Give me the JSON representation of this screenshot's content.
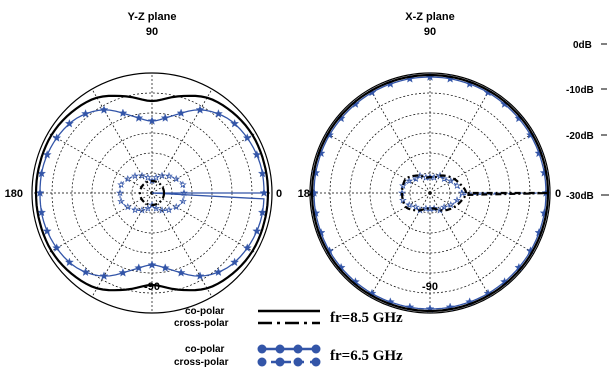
{
  "chart_data": {
    "type": "polar",
    "scale": {
      "unit": "dB",
      "min": -30,
      "max": 0,
      "step": 10,
      "tick_labels": [
        "0dB",
        "-10dB",
        "-20dB",
        "-30dB"
      ]
    },
    "angle_labels": [
      "90",
      "0",
      "-90",
      "180"
    ],
    "grid": true,
    "colors": {
      "fr_8_5": "#000000",
      "fr_6_5": "#3355a8"
    },
    "legend": [
      {
        "label": "co-polar",
        "group": "fr=8.5 GHz",
        "style": "solid"
      },
      {
        "label": "cross-polar",
        "group": "fr=8.5 GHz",
        "style": "dash-dot"
      },
      {
        "label": "co-polar",
        "group": "fr=6.5 GHz",
        "style": "solid-marker"
      },
      {
        "label": "cross-polar",
        "group": "fr=6.5 GHz",
        "style": "dashed-marker"
      }
    ],
    "legend_groups": [
      "fr=8.5 GHz",
      "fr=6.5 GHz"
    ],
    "angles_deg": [
      0,
      15,
      30,
      45,
      60,
      75,
      90,
      105,
      120,
      135,
      150,
      165,
      180,
      195,
      210,
      225,
      240,
      255,
      270,
      285,
      300,
      315,
      330,
      345
    ],
    "panels": [
      {
        "title": "Y-Z plane",
        "series": {
          "co_8_5": [
            -1,
            -1,
            -1,
            -1.5,
            -2.5,
            -5,
            -7,
            -5,
            -2.5,
            -1.5,
            -1,
            -1,
            -1,
            -1,
            -1,
            -1.5,
            -2.5,
            -5,
            -7,
            -5,
            -2.5,
            -1.5,
            -1,
            -1
          ],
          "cross_8_5": [
            -27,
            -27,
            -27,
            -27,
            -27,
            -27,
            -27,
            -27,
            -27,
            -27,
            -27,
            -27,
            -27,
            -27,
            -27,
            -27,
            -27,
            -27,
            -27,
            -27,
            -27,
            -27,
            -27,
            -27
          ],
          "co_6_5": [
            -2,
            -2,
            -2.5,
            -3.5,
            -6,
            -10,
            -12,
            -10,
            -6,
            -3.5,
            -2.5,
            -2,
            -2,
            -2,
            -2.5,
            -3.5,
            -6,
            -10,
            -12,
            -10,
            -6,
            -3.5,
            -2.5,
            -2
          ],
          "cross_6_5": [
            -22,
            -22,
            -23,
            -24,
            -25,
            -26,
            -27,
            -26,
            -25,
            -24,
            -23,
            -22,
            -22,
            -22,
            -23,
            -24,
            -25,
            -26,
            -27,
            -26,
            -25,
            -24,
            -23,
            -22
          ]
        }
      },
      {
        "title": "X-Z plane",
        "series": {
          "co_8_5": [
            -0.5,
            -0.5,
            -0.5,
            -0.5,
            -0.5,
            -0.5,
            -0.5,
            -0.5,
            -0.5,
            -0.5,
            -0.5,
            -0.5,
            -0.5,
            -0.5,
            -0.5,
            -0.5,
            -0.5,
            -0.5,
            -0.5,
            -0.5,
            -0.5,
            -0.5,
            -0.5,
            -0.5
          ],
          "cross_8_5": [
            -21,
            -22,
            -23,
            -24,
            -25,
            -26,
            -26,
            -26,
            -25,
            -24,
            -23,
            -23,
            -23,
            -23,
            -23,
            -24,
            -25,
            -26,
            -26,
            -26,
            -25,
            -24,
            -23,
            -22
          ],
          "co_6_5": [
            -1,
            -1,
            -1,
            -1,
            -1,
            -1,
            -1,
            -1,
            -1,
            -1,
            -1,
            -1,
            -1,
            -1,
            -1,
            -1,
            -1,
            -1,
            -1,
            -1,
            -1,
            -1,
            -1,
            -1
          ],
          "cross_6_5": [
            -22,
            -23,
            -24,
            -25,
            -25,
            -26,
            -26,
            -26,
            -25,
            -25,
            -24,
            -23,
            -23,
            -23,
            -24,
            -25,
            -25,
            -26,
            -26,
            -26,
            -25,
            -25,
            -24,
            -23
          ]
        }
      }
    ]
  }
}
